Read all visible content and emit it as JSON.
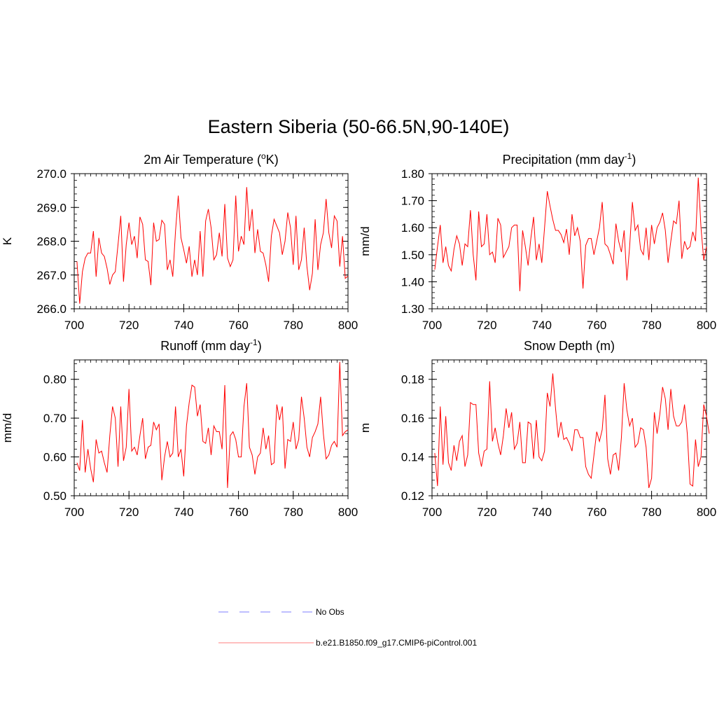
{
  "main_title": "Eastern Siberia (50-66.5N,90-140E)",
  "colors": {
    "model": "#ff0000",
    "obs": "#9999ff"
  },
  "legend": {
    "obs_label": "No Obs",
    "model_label": "b.e21.B1850.f09_g17.CMIP6-piControl.001"
  },
  "chart_data": [
    {
      "type": "line",
      "title": "2m Air Temperature (",
      "title_sup": "o",
      "title_after": "K)",
      "ylabel": "K",
      "xlabel": "",
      "xlim": [
        700,
        800
      ],
      "ylim": [
        266.0,
        270.0
      ],
      "xticks": [
        700,
        720,
        740,
        760,
        780,
        800
      ],
      "yticks": [
        266.0,
        267.0,
        268.0,
        269.0,
        270.0
      ],
      "yticklabels": [
        "266.0",
        "267.0",
        "268.0",
        "269.0",
        "270.0"
      ],
      "xtick_minor": 2,
      "ytick_minor": 0.2,
      "x_start": 701,
      "series": [
        {
          "name": "b.e21.B1850.f09_g17.CMIP6-piControl.001",
          "values": [
            267.4,
            266.15,
            267.1,
            267.5,
            267.65,
            267.65,
            268.3,
            266.95,
            268.1,
            267.65,
            267.55,
            267.2,
            266.72,
            267.0,
            267.1,
            267.9,
            268.75,
            266.8,
            267.9,
            268.55,
            267.9,
            268.15,
            267.5,
            268.72,
            268.5,
            267.45,
            267.4,
            266.7,
            268.55,
            268.0,
            268.05,
            268.62,
            268.5,
            267.15,
            267.45,
            266.95,
            268.3,
            269.35,
            268.1,
            267.75,
            267.35,
            267.85,
            266.95,
            267.45,
            267.0,
            268.3,
            266.95,
            268.6,
            268.95,
            268.4,
            267.45,
            267.6,
            268.25,
            267.55,
            269.1,
            267.5,
            267.25,
            267.45,
            269.35,
            267.7,
            268.15,
            267.9,
            269.6,
            268.3,
            268.95,
            267.65,
            268.35,
            267.7,
            267.65,
            267.3,
            266.8,
            268.15,
            268.65,
            268.45,
            268.25,
            267.6,
            268.0,
            268.85,
            268.4,
            267.3,
            268.75,
            267.15,
            267.45,
            268.4,
            267.25,
            266.55,
            267.05,
            268.65,
            267.15,
            267.9,
            268.25,
            269.25,
            268.25,
            267.8,
            268.75,
            268.6,
            267.25,
            268.15,
            266.9,
            266.97
          ]
        }
      ]
    },
    {
      "type": "line",
      "title": "Precipitation (mm day",
      "title_sup": "-1",
      "title_after": ")",
      "ylabel": "mm/d",
      "xlabel": "",
      "xlim": [
        700,
        800
      ],
      "ylim": [
        1.3,
        1.8
      ],
      "xticks": [
        700,
        720,
        740,
        760,
        780,
        800
      ],
      "yticks": [
        1.3,
        1.4,
        1.5,
        1.6,
        1.7,
        1.8
      ],
      "yticklabels": [
        "1.30",
        "1.40",
        "1.50",
        "1.60",
        "1.70",
        "1.80"
      ],
      "xtick_minor": 2,
      "ytick_minor": 0.02,
      "x_start": 701,
      "series": [
        {
          "name": "b.e21.B1850.f09_g17.CMIP6-piControl.001",
          "values": [
            1.445,
            1.53,
            1.61,
            1.47,
            1.53,
            1.46,
            1.44,
            1.52,
            1.57,
            1.54,
            1.46,
            1.54,
            1.53,
            1.665,
            1.5,
            1.405,
            1.66,
            1.53,
            1.54,
            1.65,
            1.5,
            1.51,
            1.47,
            1.635,
            1.61,
            1.49,
            1.51,
            1.53,
            1.6,
            1.61,
            1.61,
            1.365,
            1.59,
            1.53,
            1.46,
            1.56,
            1.64,
            1.48,
            1.54,
            1.47,
            1.6,
            1.735,
            1.68,
            1.63,
            1.59,
            1.59,
            1.575,
            1.545,
            1.595,
            1.5,
            1.65,
            1.57,
            1.6,
            1.55,
            1.375,
            1.535,
            1.56,
            1.56,
            1.5,
            1.55,
            1.6,
            1.695,
            1.54,
            1.53,
            1.5,
            1.465,
            1.615,
            1.55,
            1.51,
            1.59,
            1.405,
            1.53,
            1.695,
            1.59,
            1.61,
            1.52,
            1.5,
            1.6,
            1.48,
            1.61,
            1.54,
            1.6,
            1.62,
            1.655,
            1.59,
            1.47,
            1.55,
            1.625,
            1.615,
            1.7,
            1.485,
            1.55,
            1.52,
            1.53,
            1.585,
            1.55,
            1.785,
            1.6,
            1.48,
            1.53
          ]
        }
      ]
    },
    {
      "type": "line",
      "title": "Runoff (mm day",
      "title_sup": "-1",
      "title_after": ")",
      "ylabel": "mm/d",
      "xlabel": "",
      "xlim": [
        700,
        800
      ],
      "ylim": [
        0.5,
        0.85
      ],
      "xticks": [
        700,
        720,
        740,
        760,
        780,
        800
      ],
      "yticks": [
        0.5,
        0.6,
        0.7,
        0.8
      ],
      "yticklabels": [
        "0.50",
        "0.60",
        "0.70",
        "0.80"
      ],
      "xtick_minor": 2,
      "ytick_minor": 0.02,
      "x_start": 701,
      "series": [
        {
          "name": "b.e21.B1850.f09_g17.CMIP6-piControl.001",
          "values": [
            0.585,
            0.565,
            0.695,
            0.56,
            0.62,
            0.57,
            0.535,
            0.645,
            0.61,
            0.615,
            0.585,
            0.56,
            0.655,
            0.73,
            0.7,
            0.575,
            0.73,
            0.59,
            0.625,
            0.775,
            0.615,
            0.625,
            0.605,
            0.655,
            0.7,
            0.595,
            0.625,
            0.63,
            0.69,
            0.67,
            0.685,
            0.54,
            0.6,
            0.64,
            0.6,
            0.61,
            0.73,
            0.6,
            0.62,
            0.55,
            0.68,
            0.74,
            0.785,
            0.78,
            0.705,
            0.735,
            0.64,
            0.635,
            0.675,
            0.605,
            0.68,
            0.665,
            0.665,
            0.62,
            0.785,
            0.52,
            0.655,
            0.665,
            0.645,
            0.6,
            0.6,
            0.73,
            0.79,
            0.625,
            0.605,
            0.555,
            0.6,
            0.61,
            0.675,
            0.62,
            0.655,
            0.58,
            0.585,
            0.735,
            0.695,
            0.73,
            0.57,
            0.645,
            0.64,
            0.69,
            0.62,
            0.645,
            0.755,
            0.7,
            0.625,
            0.6,
            0.65,
            0.665,
            0.685,
            0.755,
            0.66,
            0.595,
            0.605,
            0.63,
            0.64,
            0.625,
            0.845,
            0.655,
            0.665,
            0.67
          ]
        }
      ]
    },
    {
      "type": "line",
      "title": "Snow Depth (m)",
      "title_sup": "",
      "title_after": "",
      "ylabel": "m",
      "xlabel": "",
      "xlim": [
        700,
        800
      ],
      "ylim": [
        0.12,
        0.19
      ],
      "xticks": [
        700,
        720,
        740,
        760,
        780,
        800
      ],
      "yticks": [
        0.12,
        0.14,
        0.16,
        0.18
      ],
      "yticklabels": [
        "0.12",
        "0.14",
        "0.16",
        "0.18"
      ],
      "xtick_minor": 2,
      "ytick_minor": 0.004,
      "x_start": 701,
      "series": [
        {
          "name": "b.e21.B1850.f09_g17.CMIP6-piControl.001",
          "values": [
            0.142,
            0.125,
            0.166,
            0.136,
            0.161,
            0.137,
            0.133,
            0.146,
            0.138,
            0.148,
            0.151,
            0.135,
            0.141,
            0.168,
            0.167,
            0.167,
            0.142,
            0.135,
            0.143,
            0.144,
            0.179,
            0.148,
            0.155,
            0.147,
            0.141,
            0.151,
            0.165,
            0.155,
            0.163,
            0.144,
            0.147,
            0.158,
            0.137,
            0.137,
            0.158,
            0.157,
            0.139,
            0.159,
            0.14,
            0.138,
            0.143,
            0.173,
            0.166,
            0.183,
            0.165,
            0.15,
            0.158,
            0.149,
            0.15,
            0.147,
            0.143,
            0.154,
            0.154,
            0.15,
            0.15,
            0.135,
            0.131,
            0.129,
            0.141,
            0.153,
            0.148,
            0.154,
            0.172,
            0.139,
            0.131,
            0.141,
            0.142,
            0.133,
            0.15,
            0.178,
            0.164,
            0.156,
            0.16,
            0.145,
            0.147,
            0.155,
            0.154,
            0.145,
            0.124,
            0.129,
            0.163,
            0.152,
            0.162,
            0.176,
            0.17,
            0.154,
            0.175,
            0.161,
            0.156,
            0.156,
            0.158,
            0.167,
            0.152,
            0.126,
            0.125,
            0.149,
            0.135,
            0.14,
            0.167,
            0.161,
            0.152
          ]
        }
      ]
    }
  ]
}
